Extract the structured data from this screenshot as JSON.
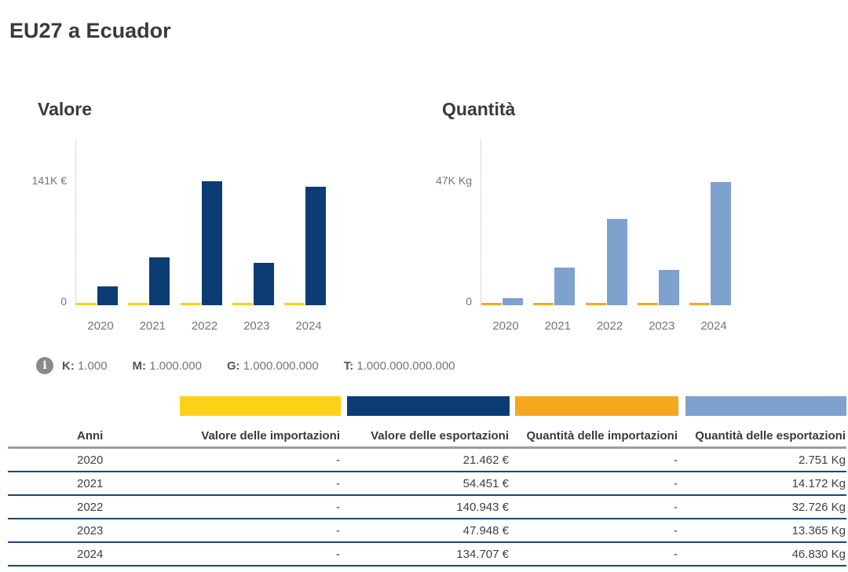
{
  "page": {
    "title": "EU27 a Ecuador"
  },
  "colors": {
    "valore_importazioni": "#FCD117",
    "valore_esportazioni": "#0B3C74",
    "quantita_importazioni": "#F5A81F",
    "quantita_esportazioni": "#7EA1CE",
    "row_border": "#1b4677",
    "header_border": "#9d9d9d"
  },
  "chart_data": [
    {
      "type": "bar",
      "title": "Valore",
      "categories": [
        "2020",
        "2021",
        "2022",
        "2023",
        "2024"
      ],
      "series": [
        {
          "name": "Valore delle importazioni",
          "color_key": "valore_importazioni",
          "values": [
            0,
            0,
            0,
            0,
            0
          ]
        },
        {
          "name": "Valore delle esportazioni",
          "color_key": "valore_esportazioni",
          "values": [
            21462,
            54451,
            140943,
            47948,
            134707
          ]
        }
      ],
      "y_axis": {
        "top_label": "141K €",
        "zero_label": "0",
        "max": 141000
      },
      "unit": "€",
      "legend_position": "none",
      "grid": false
    },
    {
      "type": "bar",
      "title": "Quantità",
      "categories": [
        "2020",
        "2021",
        "2022",
        "2023",
        "2024"
      ],
      "series": [
        {
          "name": "Quantità delle importazioni",
          "color_key": "quantita_importazioni",
          "values": [
            0,
            0,
            0,
            0,
            0
          ]
        },
        {
          "name": "Quantità delle esportazioni",
          "color_key": "quantita_esportazioni",
          "values": [
            2751,
            14172,
            32726,
            13365,
            46830
          ]
        }
      ],
      "y_axis": {
        "top_label": "47K Kg",
        "zero_label": "0",
        "max": 47000
      },
      "unit": "Kg",
      "legend_position": "none",
      "grid": false
    }
  ],
  "unit_legend": {
    "items": [
      {
        "label": "K:",
        "value": "1.000"
      },
      {
        "label": "M:",
        "value": "1.000.000"
      },
      {
        "label": "G:",
        "value": "1.000.000.000"
      },
      {
        "label": "T:",
        "value": "1.000.000.000.000"
      }
    ]
  },
  "table": {
    "columns": [
      "Anni",
      "Valore delle importazioni",
      "Valore delle esportazioni",
      "Quantità delle importazioni",
      "Quantità delle esportazioni"
    ],
    "rows": [
      [
        "2020",
        "-",
        "21.462 €",
        "-",
        "2.751 Kg"
      ],
      [
        "2021",
        "-",
        "54.451 €",
        "-",
        "14.172 Kg"
      ],
      [
        "2022",
        "-",
        "140.943 €",
        "-",
        "32.726 Kg"
      ],
      [
        "2023",
        "-",
        "47.948 €",
        "-",
        "13.365 Kg"
      ],
      [
        "2024",
        "-",
        "134.707 €",
        "-",
        "46.830 Kg"
      ]
    ]
  }
}
